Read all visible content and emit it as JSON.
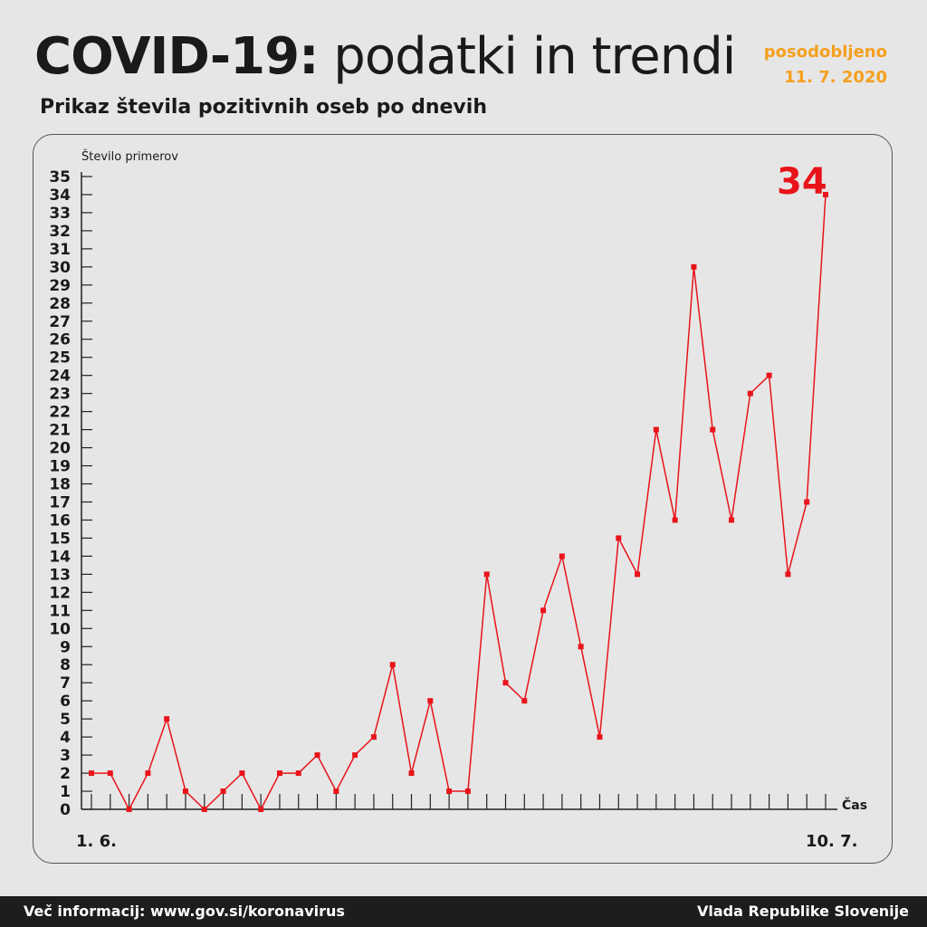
{
  "header": {
    "title_bold": "COVID-19:",
    "title_light": "podatki in trendi",
    "subtitle": "Prikaz števila pozitivnih oseb po dnevih",
    "updated_label": "posodobljeno",
    "updated_date": "11. 7. 2020"
  },
  "footer": {
    "info": "Več informacij: www.gov.si/koronavirus",
    "source": "Vlada Republike Slovenije"
  },
  "colors": {
    "accent": "#f5a01e",
    "series": "#e8141a"
  },
  "chart_data": {
    "type": "line",
    "ylabel": "Število primerov",
    "xlabel": "Čas",
    "x_start_label": "1. 6.",
    "x_end_label": "10. 7.",
    "ylim": [
      0,
      35
    ],
    "yticks": [
      0,
      1,
      2,
      3,
      4,
      5,
      6,
      7,
      8,
      9,
      10,
      11,
      12,
      13,
      14,
      15,
      16,
      17,
      18,
      19,
      20,
      21,
      22,
      23,
      24,
      25,
      26,
      27,
      28,
      29,
      30,
      31,
      32,
      33,
      34,
      35
    ],
    "x": [
      "1. 6.",
      "2. 6.",
      "3. 6.",
      "4. 6.",
      "5. 6.",
      "6. 6.",
      "7. 6.",
      "8. 6.",
      "9. 6.",
      "10. 6.",
      "11. 6.",
      "12. 6.",
      "13. 6.",
      "14. 6.",
      "15. 6.",
      "16. 6.",
      "17. 6.",
      "18. 6.",
      "19. 6.",
      "20. 6.",
      "21. 6.",
      "22. 6.",
      "23. 6.",
      "24. 6.",
      "25. 6.",
      "26. 6.",
      "27. 6.",
      "28. 6.",
      "29. 6.",
      "30. 6.",
      "1. 7.",
      "2. 7.",
      "3. 7.",
      "4. 7.",
      "5. 7.",
      "6. 7.",
      "7. 7.",
      "8. 7.",
      "9. 7.",
      "10. 7."
    ],
    "values": [
      2,
      2,
      0,
      2,
      5,
      1,
      0,
      1,
      2,
      0,
      2,
      2,
      3,
      1,
      3,
      4,
      8,
      2,
      6,
      1,
      1,
      13,
      7,
      6,
      11,
      14,
      9,
      4,
      15,
      13,
      21,
      16,
      30,
      21,
      16,
      23,
      24,
      13,
      17,
      34
    ],
    "highlight_label": "34",
    "grid": false
  }
}
